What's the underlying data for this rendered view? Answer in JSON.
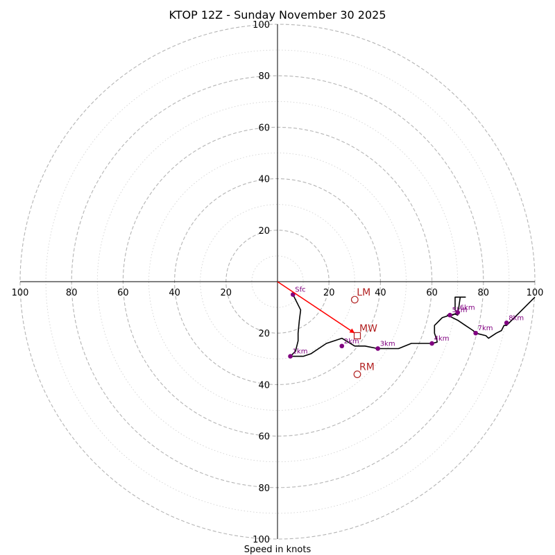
{
  "chart_data": {
    "type": "hodograph",
    "title": "KTOP 12Z - Sunday November 30 2025",
    "xlabel": "Speed in knots",
    "ylabel": "",
    "xlim": [
      -100,
      100
    ],
    "ylim": [
      -100,
      100
    ],
    "ring_major_step": 20,
    "ring_minor_step": 10,
    "tick_labels": {
      "x_left": [
        "100",
        "80",
        "60",
        "40",
        "20"
      ],
      "x_right": [
        "20",
        "40",
        "60",
        "80",
        "100"
      ],
      "y_top": [
        "20",
        "40",
        "60",
        "80",
        "100"
      ],
      "y_bottom": [
        "20",
        "40",
        "60",
        "80",
        "100"
      ]
    },
    "trace": {
      "name": "wind profile",
      "color": "#000000",
      "u": [
        6,
        7,
        9,
        8.5,
        8,
        8,
        7,
        5,
        6,
        10,
        13,
        19,
        25,
        30,
        34,
        39,
        44,
        47,
        52,
        60,
        62,
        62,
        61,
        61,
        62,
        64,
        67,
        69,
        70,
        71,
        73,
        69,
        69,
        70,
        68,
        66,
        70,
        73,
        76,
        77,
        81,
        82,
        85,
        87,
        87,
        88,
        89,
        100
      ],
      "v": [
        -5,
        -7,
        -11,
        -15,
        -20,
        -23,
        -27,
        -29,
        -29,
        -29,
        -28,
        -24,
        -22,
        -25,
        -25,
        -26,
        -26,
        -26,
        -24,
        -24,
        -23.5,
        -23,
        -20,
        -17,
        -16,
        -14,
        -13,
        -12.6,
        -13,
        -6,
        -6,
        -6,
        -11,
        -12,
        -13,
        -13,
        -15,
        -17,
        -19,
        -20,
        -21,
        -22,
        -20,
        -19,
        -19,
        -17,
        -17,
        -6
      ]
    },
    "height_markers": [
      {
        "label": "Sfc",
        "u": 6,
        "v": -5
      },
      {
        "label": "1km",
        "u": 5,
        "v": -29
      },
      {
        "label": "2km",
        "u": 25,
        "v": -25
      },
      {
        "label": "3km",
        "u": 39,
        "v": -26
      },
      {
        "label": "4km",
        "u": 60,
        "v": -24
      },
      {
        "label": "5km",
        "u": 67,
        "v": -13
      },
      {
        "label": "6km",
        "u": 70,
        "v": -12
      },
      {
        "label": "7km",
        "u": 77,
        "v": -20
      },
      {
        "label": "8km",
        "u": 89,
        "v": -16
      }
    ],
    "marker_color": "#800080",
    "storm_motion": {
      "color": "#b22222",
      "arrow_color": "#ff0000",
      "arrow": {
        "from": [
          0,
          0
        ],
        "to": [
          30,
          -20
        ]
      },
      "points": [
        {
          "label": "LM",
          "symbol": "circle",
          "u": 30,
          "v": -7
        },
        {
          "label": "MW",
          "symbol": "square",
          "u": 31,
          "v": -21
        },
        {
          "label": "RM",
          "symbol": "circle",
          "u": 31,
          "v": -36
        }
      ]
    }
  }
}
